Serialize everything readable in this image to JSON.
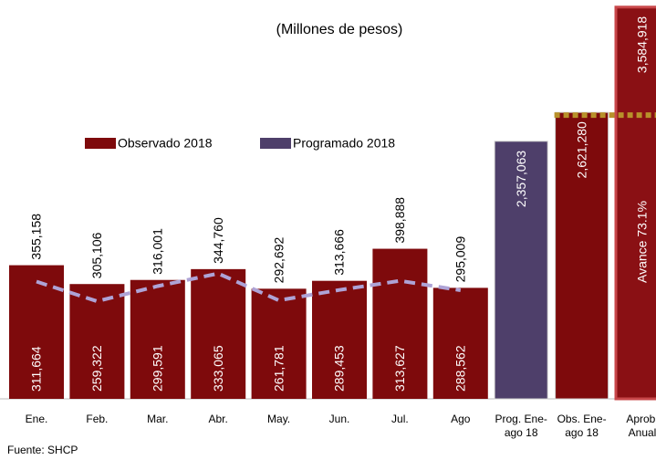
{
  "chart_data": {
    "type": "bar",
    "subtitle": "(Millones de pesos)",
    "source": "Fuente: SHCP",
    "categories": [
      "Ene.",
      "Feb.",
      "Mar.",
      "Abr.",
      "May.",
      "Jun.",
      "Jul.",
      "Ago"
    ],
    "ylim": [
      0,
      1060000
    ],
    "y2lim": [
      0,
      3650000
    ],
    "series": [
      {
        "name": "Observado 2018",
        "type": "bar",
        "color": "#7e0a0c",
        "values": [
          355158,
          305106,
          316001,
          344760,
          292692,
          313666,
          398888,
          295009
        ],
        "value_labels": [
          "355,158",
          "305,106",
          "316,001",
          "344,760",
          "292,692",
          "313,666",
          "398,888",
          "295,009"
        ]
      },
      {
        "name": "Programado 2018",
        "type": "line",
        "color": "#4e3f6a",
        "line_color": "#aea3d6",
        "values": [
          311664,
          259322,
          299591,
          333065,
          261781,
          289453,
          313627,
          288562
        ],
        "value_labels": [
          "311,664",
          "259,322",
          "299,591",
          "333,065",
          "261,781",
          "289,453",
          "313,627",
          "288,562"
        ]
      }
    ],
    "summary": {
      "axis": "y2",
      "categories": [
        "Prog. Ene-ago 18",
        "Obs. Ene-ago 18",
        "Aprob. Anual"
      ],
      "colors": [
        "#4e3f6a",
        "#7e0a0c",
        "#8a1014"
      ],
      "values": [
        2357063,
        2621280,
        3584918
      ],
      "value_labels": [
        "2,357,063",
        "2,621,280",
        "3,584,918"
      ],
      "reference_color": "#b8912a"
    },
    "annotation": "Avance  73.1%"
  }
}
